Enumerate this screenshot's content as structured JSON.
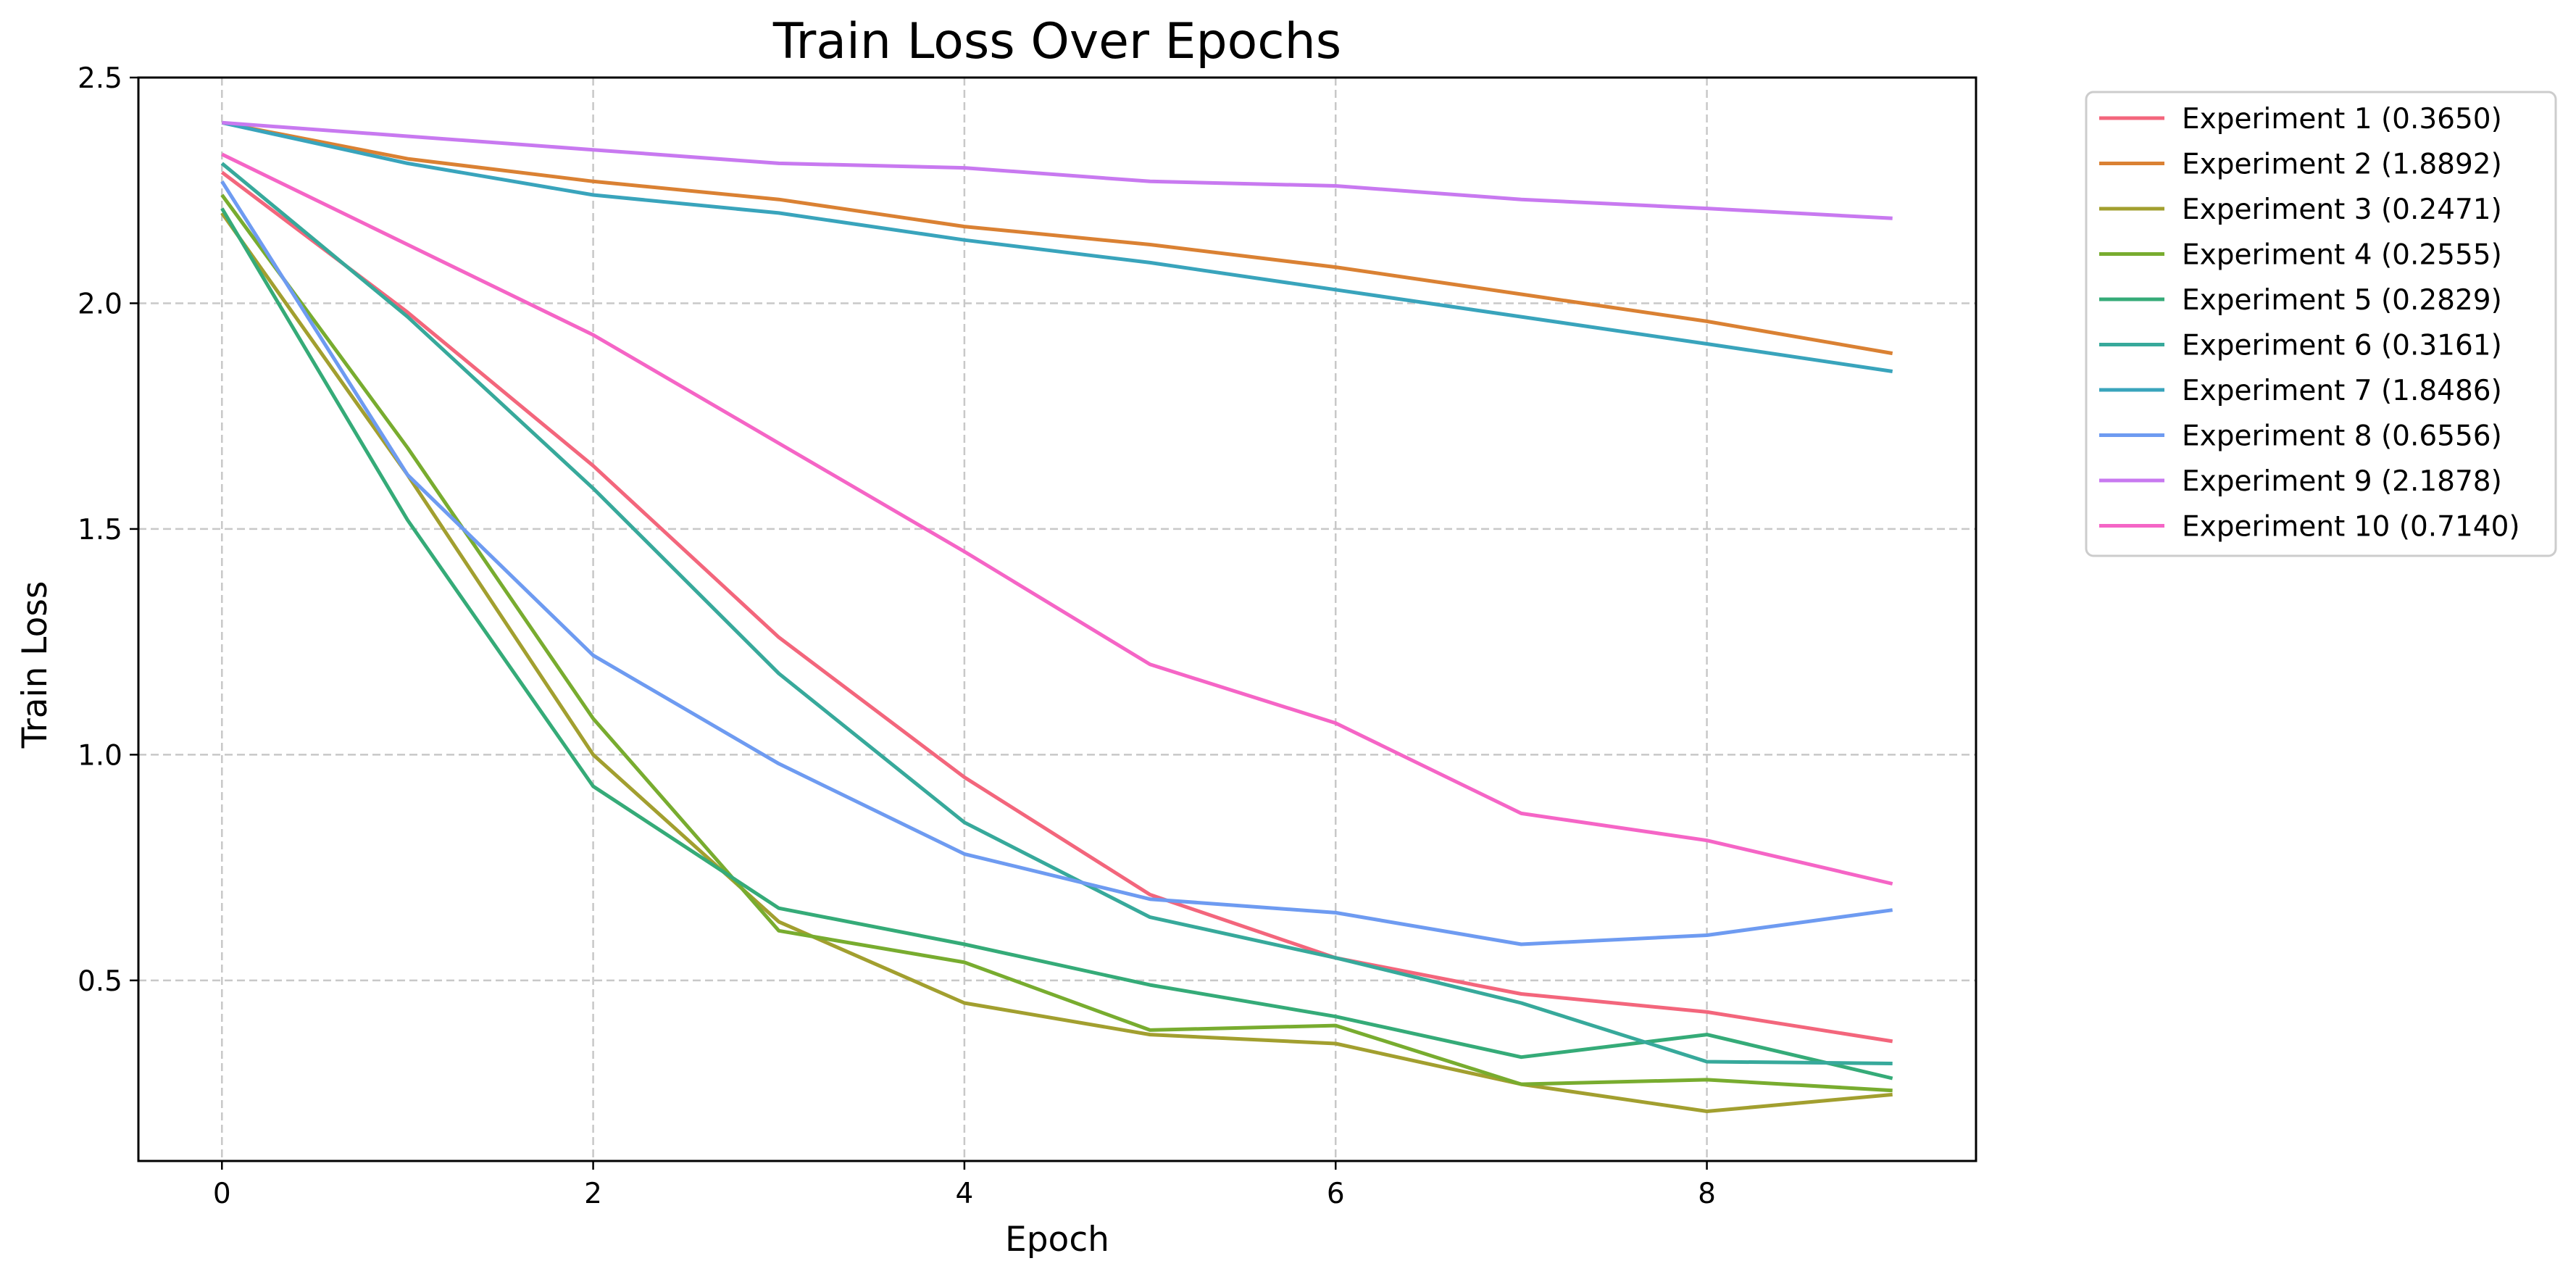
{
  "chart_data": {
    "type": "line",
    "title": "Train Loss Over Epochs",
    "xlabel": "Epoch",
    "ylabel": "Train Loss",
    "xlim": [
      -0.45,
      9.45
    ],
    "ylim": [
      0.1,
      2.5
    ],
    "x_ticks": [
      0,
      2,
      4,
      6,
      8
    ],
    "y_ticks": [
      0.5,
      1.0,
      1.5,
      2.0,
      2.5
    ],
    "x_tick_labels": [
      "0",
      "2",
      "4",
      "6",
      "8"
    ],
    "y_tick_labels": [
      "0.5",
      "1.0",
      "1.5",
      "2.0",
      "2.5"
    ],
    "grid": true,
    "legend_position": "outside-top-right",
    "x": [
      0,
      1,
      2,
      3,
      4,
      5,
      6,
      7,
      8,
      9
    ],
    "series": [
      {
        "name": "Experiment 1 (0.3650)",
        "color": "#f3667c",
        "values": [
          2.29,
          1.98,
          1.64,
          1.26,
          0.95,
          0.69,
          0.55,
          0.47,
          0.43,
          0.365
        ]
      },
      {
        "name": "Experiment 2 (1.8892)",
        "color": "#da8133",
        "values": [
          2.4,
          2.32,
          2.27,
          2.23,
          2.17,
          2.13,
          2.08,
          2.02,
          1.96,
          1.889
        ]
      },
      {
        "name": "Experiment 3 (0.2471)",
        "color": "#a29f2f",
        "values": [
          2.2,
          1.62,
          1.0,
          0.63,
          0.45,
          0.38,
          0.36,
          0.27,
          0.21,
          0.247
        ]
      },
      {
        "name": "Experiment 4 (0.2555)",
        "color": "#78ac2f",
        "values": [
          2.24,
          1.68,
          1.08,
          0.61,
          0.54,
          0.39,
          0.4,
          0.27,
          0.28,
          0.256
        ]
      },
      {
        "name": "Experiment 5 (0.2829)",
        "color": "#35ab78",
        "values": [
          2.21,
          1.52,
          0.93,
          0.66,
          0.58,
          0.49,
          0.42,
          0.33,
          0.38,
          0.283
        ]
      },
      {
        "name": "Experiment 6 (0.3161)",
        "color": "#37a99b",
        "values": [
          2.31,
          1.97,
          1.59,
          1.18,
          0.85,
          0.64,
          0.55,
          0.45,
          0.32,
          0.316
        ]
      },
      {
        "name": "Experiment 7 (1.8486)",
        "color": "#39a4bc",
        "values": [
          2.4,
          2.31,
          2.24,
          2.2,
          2.14,
          2.09,
          2.03,
          1.97,
          1.91,
          1.849
        ]
      },
      {
        "name": "Experiment 8 (0.6556)",
        "color": "#6e9bf1",
        "values": [
          2.27,
          1.62,
          1.22,
          0.98,
          0.78,
          0.68,
          0.65,
          0.58,
          0.6,
          0.656
        ]
      },
      {
        "name": "Experiment 9 (2.1878)",
        "color": "#c879f0",
        "values": [
          2.4,
          2.37,
          2.34,
          2.31,
          2.3,
          2.27,
          2.26,
          2.23,
          2.21,
          2.188
        ]
      },
      {
        "name": "Experiment 10 (0.7140)",
        "color": "#f565c6",
        "values": [
          2.33,
          2.13,
          1.93,
          1.69,
          1.45,
          1.2,
          1.07,
          0.87,
          0.81,
          0.714
        ]
      }
    ]
  }
}
